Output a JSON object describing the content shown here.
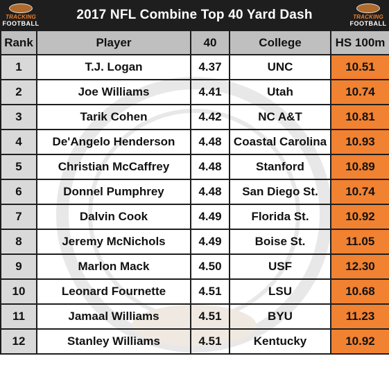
{
  "title": "2017 NFL Combine Top 40 Yard Dash",
  "logo": {
    "line1": "TRACKING",
    "line2": "FOOTBALL"
  },
  "colors": {
    "header_bar": "#1e1e1e",
    "column_header": "#bfbfbf",
    "rank_cell": "#d9d9d9",
    "hs_cell": "#f08232"
  },
  "columns": [
    "Rank",
    "Player",
    "40",
    "College",
    "HS 100m"
  ],
  "rows": [
    [
      "1",
      "T.J. Logan",
      "4.37",
      "UNC",
      "10.51"
    ],
    [
      "2",
      "Joe Williams",
      "4.41",
      "Utah",
      "10.74"
    ],
    [
      "3",
      "Tarik Cohen",
      "4.42",
      "NC A&T",
      "10.81"
    ],
    [
      "4",
      "De'Angelo Henderson",
      "4.48",
      "Coastal Carolina",
      "10.93"
    ],
    [
      "5",
      "Christian McCaffrey",
      "4.48",
      "Stanford",
      "10.89"
    ],
    [
      "6",
      "Donnel Pumphrey",
      "4.48",
      "San Diego St.",
      "10.74"
    ],
    [
      "7",
      "Dalvin Cook",
      "4.49",
      "Florida St.",
      "10.92"
    ],
    [
      "8",
      "Jeremy McNichols",
      "4.49",
      "Boise St.",
      "11.05"
    ],
    [
      "9",
      "Marlon Mack",
      "4.50",
      "USF",
      "12.30"
    ],
    [
      "10",
      "Leonard Fournette",
      "4.51",
      "LSU",
      "10.68"
    ],
    [
      "11",
      "Jamaal Williams",
      "4.51",
      "BYU",
      "11.23"
    ],
    [
      "12",
      "Stanley Williams",
      "4.51",
      "Kentucky",
      "10.92"
    ]
  ]
}
